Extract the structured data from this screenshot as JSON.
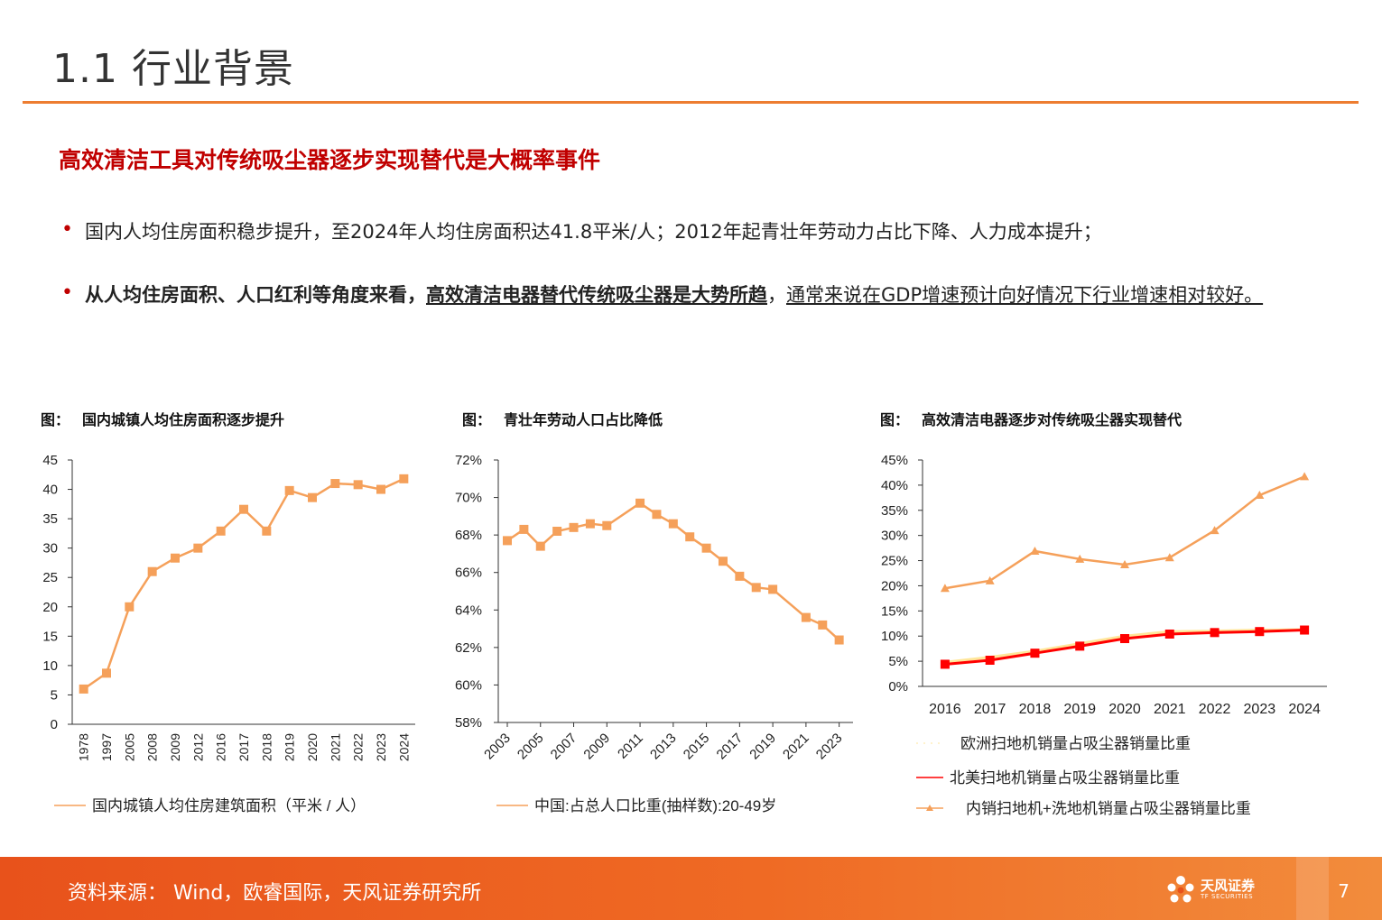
{
  "header": {
    "title": "1.1 行业背景",
    "subtitle": "高效清洁工具对传统吸尘器逐步实现替代是大概率事件"
  },
  "bullets": {
    "b1": "国内人均住房面积稳步提升，至2024年人均住房面积达41.8平米/人；2012年起青壮年劳动力占比下降、人力成本提升；",
    "b2_bold1": "从人均住房面积、人口红利等角度来看，",
    "b2_bold2": "高效清洁电器替代传统吸尘器是大势所趋",
    "b2_sep": "，",
    "b2_ul": "通常来说在GDP增速预计向好情况下行业增速相对较好。"
  },
  "captions": {
    "label": "图：",
    "c1": "国内城镇人均住房面积逐步提升",
    "c2": "青壮年劳动人口占比降低",
    "c3": "高效清洁电器逐步对传统吸尘器实现替代"
  },
  "colors": {
    "orange": "#F5A05A",
    "red": "#FF0000",
    "yellow": "#FFE699",
    "accent": "#ED7D31",
    "title_red": "#C00000"
  },
  "chart_data": [
    {
      "type": "line",
      "title": "国内城镇人均住房面积逐步提升",
      "categories": [
        "1978",
        "1997",
        "2005",
        "2008",
        "2009",
        "2012",
        "2016",
        "2017",
        "2018",
        "2019",
        "2020",
        "2021",
        "2022",
        "2023",
        "2024"
      ],
      "series": [
        {
          "name": "国内城镇人均住房建筑面积（平米 / 人）",
          "values": [
            6.0,
            8.7,
            20.0,
            26.0,
            28.3,
            30.0,
            32.9,
            36.6,
            32.9,
            39.8,
            38.6,
            41.0,
            40.8,
            40.0,
            41.8
          ]
        }
      ],
      "ylim": [
        0,
        45
      ],
      "yticks": [
        "0",
        "5",
        "10",
        "15",
        "20",
        "25",
        "30",
        "35",
        "40",
        "45"
      ],
      "grid": false,
      "legend": "bottom"
    },
    {
      "type": "line",
      "title": "青壮年劳动人口占比降低",
      "x": [
        2003,
        2004,
        2005,
        2006,
        2007,
        2008,
        2009,
        2011,
        2012,
        2013,
        2014,
        2015,
        2016,
        2017,
        2018,
        2019,
        2021,
        2022,
        2023
      ],
      "xticks": [
        "2003",
        "2005",
        "2007",
        "2009",
        "2011",
        "2013",
        "2015",
        "2017",
        "2019",
        "2021",
        "2023"
      ],
      "series": [
        {
          "name": "中国:占总人口比重(抽样数):20-49岁",
          "values": [
            67.7,
            68.3,
            67.4,
            68.2,
            68.4,
            68.6,
            68.5,
            69.7,
            69.1,
            68.6,
            67.9,
            67.3,
            66.6,
            65.8,
            65.2,
            65.1,
            63.6,
            63.2,
            62.4
          ]
        }
      ],
      "ylim": [
        58,
        72
      ],
      "yticks": [
        "58%",
        "60%",
        "62%",
        "64%",
        "66%",
        "68%",
        "70%",
        "72%"
      ],
      "grid": false,
      "legend": "bottom"
    },
    {
      "type": "line",
      "title": "高效清洁电器逐步对传统吸尘器实现替代",
      "categories": [
        "2016",
        "2017",
        "2018",
        "2019",
        "2020",
        "2021",
        "2022",
        "2023",
        "2024"
      ],
      "series": [
        {
          "name": "欧洲扫地机销量占吸尘器销量比重",
          "values": [
            4.8,
            5.8,
            7.0,
            8.5,
            10.0,
            10.9,
            11.0,
            11.2,
            11.3
          ]
        },
        {
          "name": "北美扫地机销量占吸尘器销量比重",
          "values": [
            4.4,
            5.2,
            6.6,
            8.0,
            9.5,
            10.4,
            10.7,
            10.9,
            11.2
          ]
        },
        {
          "name": "内销扫地机+洗地机销量占吸尘器销量比重",
          "values": [
            19.5,
            21.0,
            26.9,
            25.3,
            24.2,
            25.6,
            31.0,
            38.0,
            41.7
          ]
        }
      ],
      "ylim": [
        0,
        45
      ],
      "yticks": [
        "0%",
        "5%",
        "10%",
        "15%",
        "20%",
        "25%",
        "30%",
        "35%",
        "40%",
        "45%"
      ],
      "grid": false,
      "legend": "bottom"
    }
  ],
  "footer": {
    "source": "资料来源： Wind，欧睿国际，天风证券研究所",
    "logo_cn": "天风证券",
    "logo_en": "TF SECURITIES",
    "page": "7"
  }
}
